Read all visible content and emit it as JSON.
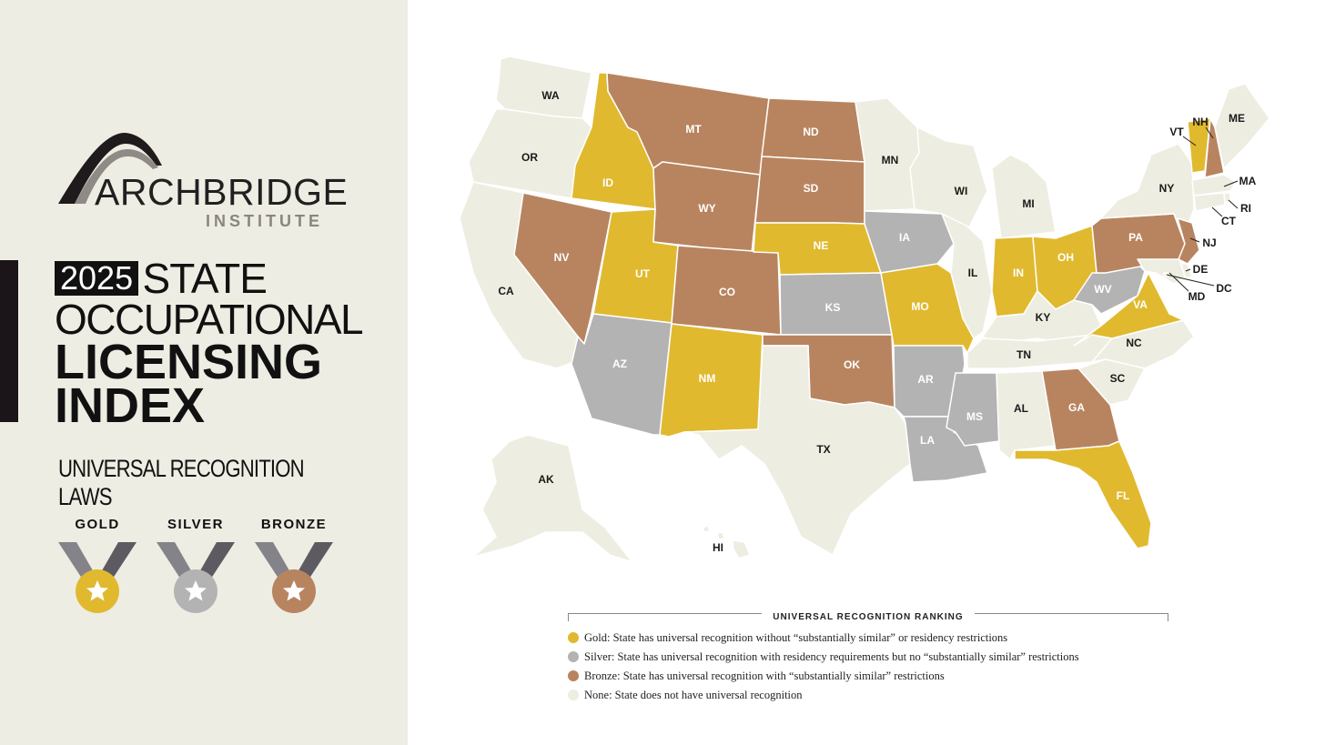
{
  "brand": {
    "name": "ARCHBRIDGE",
    "sub": "INSTITUTE"
  },
  "title": {
    "year": "2025",
    "line1": "STATE",
    "line2": "OCCUPATIONAL",
    "line3": "LICENSING",
    "line4": "INDEX"
  },
  "subtitle": "UNIVERSAL RECOGNITION LAWS",
  "medals": [
    {
      "label": "GOLD",
      "color": "#e0b92f"
    },
    {
      "label": "SILVER",
      "color": "#b3b3b3"
    },
    {
      "label": "BRONZE",
      "color": "#b8845f"
    }
  ],
  "colors": {
    "gold": "#e0b92f",
    "silver": "#b3b3b3",
    "bronze": "#b8845f",
    "none": "#eeede1"
  },
  "states": [
    {
      "abbr": "WA",
      "tier": "none"
    },
    {
      "abbr": "OR",
      "tier": "none"
    },
    {
      "abbr": "CA",
      "tier": "none"
    },
    {
      "abbr": "ID",
      "tier": "gold"
    },
    {
      "abbr": "NV",
      "tier": "bronze"
    },
    {
      "abbr": "MT",
      "tier": "bronze"
    },
    {
      "abbr": "WY",
      "tier": "bronze"
    },
    {
      "abbr": "UT",
      "tier": "gold"
    },
    {
      "abbr": "AZ",
      "tier": "silver"
    },
    {
      "abbr": "CO",
      "tier": "bronze"
    },
    {
      "abbr": "NM",
      "tier": "gold"
    },
    {
      "abbr": "ND",
      "tier": "bronze"
    },
    {
      "abbr": "SD",
      "tier": "bronze"
    },
    {
      "abbr": "NE",
      "tier": "gold"
    },
    {
      "abbr": "KS",
      "tier": "silver"
    },
    {
      "abbr": "OK",
      "tier": "bronze"
    },
    {
      "abbr": "TX",
      "tier": "none"
    },
    {
      "abbr": "MN",
      "tier": "none"
    },
    {
      "abbr": "IA",
      "tier": "silver"
    },
    {
      "abbr": "MO",
      "tier": "gold"
    },
    {
      "abbr": "AR",
      "tier": "silver"
    },
    {
      "abbr": "LA",
      "tier": "silver"
    },
    {
      "abbr": "WI",
      "tier": "none"
    },
    {
      "abbr": "IL",
      "tier": "none"
    },
    {
      "abbr": "MI",
      "tier": "none"
    },
    {
      "abbr": "IN",
      "tier": "gold"
    },
    {
      "abbr": "OH",
      "tier": "gold"
    },
    {
      "abbr": "KY",
      "tier": "none"
    },
    {
      "abbr": "TN",
      "tier": "none"
    },
    {
      "abbr": "MS",
      "tier": "silver"
    },
    {
      "abbr": "AL",
      "tier": "none"
    },
    {
      "abbr": "GA",
      "tier": "bronze"
    },
    {
      "abbr": "FL",
      "tier": "gold"
    },
    {
      "abbr": "SC",
      "tier": "none"
    },
    {
      "abbr": "NC",
      "tier": "none"
    },
    {
      "abbr": "VA",
      "tier": "gold"
    },
    {
      "abbr": "WV",
      "tier": "silver"
    },
    {
      "abbr": "PA",
      "tier": "bronze"
    },
    {
      "abbr": "NY",
      "tier": "none"
    },
    {
      "abbr": "VT",
      "tier": "gold"
    },
    {
      "abbr": "NH",
      "tier": "bronze"
    },
    {
      "abbr": "ME",
      "tier": "none"
    },
    {
      "abbr": "MA",
      "tier": "none"
    },
    {
      "abbr": "RI",
      "tier": "none"
    },
    {
      "abbr": "CT",
      "tier": "none"
    },
    {
      "abbr": "NJ",
      "tier": "bronze"
    },
    {
      "abbr": "DE",
      "tier": "none"
    },
    {
      "abbr": "MD",
      "tier": "none"
    },
    {
      "abbr": "DC",
      "tier": "none"
    },
    {
      "abbr": "AK",
      "tier": "none"
    },
    {
      "abbr": "HI",
      "tier": "none"
    }
  ],
  "legend": {
    "title": "UNIVERSAL RECOGNITION RANKING",
    "items": [
      {
        "tier": "gold",
        "text": "Gold: State has universal recognition without “substantially similar” or residency restrictions"
      },
      {
        "tier": "silver",
        "text": "Silver: State has universal recognition with residency requirements but no “substantially similar” restrictions"
      },
      {
        "tier": "bronze",
        "text": "Bronze: State has universal recognition with “substantially similar” restrictions"
      },
      {
        "tier": "none",
        "text": "None: State does not have universal recognition"
      }
    ]
  }
}
